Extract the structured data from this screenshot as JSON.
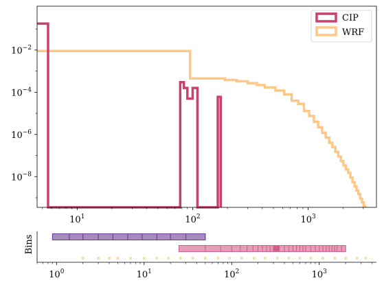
{
  "chart_data": [
    {
      "type": "step",
      "xscale": "log",
      "yscale": "log",
      "xlim": [
        4.5,
        3900
      ],
      "ylim": [
        3.5e-10,
        1.2
      ],
      "grid": false,
      "legend_position": "top-right",
      "x_tick_labels": [
        {
          "value": 10,
          "label": "10",
          "sup": "1"
        },
        {
          "value": 100,
          "label": "10",
          "sup": "2"
        },
        {
          "value": 1000,
          "label": "10",
          "sup": "3"
        }
      ],
      "y_tick_labels": [
        {
          "value": 1e-08,
          "label": "10",
          "sup": "−8"
        },
        {
          "value": 1e-06,
          "label": "10",
          "sup": "−6"
        },
        {
          "value": 0.0001,
          "label": "10",
          "sup": "−4"
        },
        {
          "value": 0.01,
          "label": "10",
          "sup": "−2"
        }
      ],
      "series": [
        {
          "name": "CIP",
          "color": "#c8416f",
          "edges": [
            4.5,
            5.6,
            78,
            84,
            90,
            100,
            110,
            165,
            175
          ],
          "values": [
            0.18,
            0.0,
            0.0003,
            0.00016,
            5e-05,
            0.00016,
            0.0,
            6e-05
          ]
        },
        {
          "name": "WRF",
          "color": "#fdc887",
          "edges": [
            4.5,
            95,
            110,
            140,
            190,
            240,
            300,
            360,
            420,
            520,
            620,
            720,
            820,
            920,
            1020,
            1120,
            1220,
            1320,
            1420,
            1520,
            1620,
            1720,
            1820,
            1920,
            2020,
            2120,
            2220,
            2320,
            2420,
            2520,
            2620,
            2720,
            2820,
            2920,
            3020,
            3120
          ],
          "values": [
            0.009,
            0.00045,
            0.00045,
            0.00045,
            0.00038,
            0.00033,
            0.00027,
            0.00022,
            0.00017,
            0.00012,
            8e-05,
            4e-05,
            2.8e-05,
            1.3e-05,
            7.5e-06,
            4e-06,
            2.2e-06,
            1.2e-06,
            7e-07,
            4e-07,
            2.5e-07,
            1.5e-07,
            9e-08,
            5.5e-08,
            3.4e-08,
            2.2e-08,
            1.5e-08,
            9e-09,
            5.5e-09,
            3.5e-09,
            2.2e-09,
            1.5e-09,
            9e-10,
            6e-10,
            4e-10
          ]
        }
      ]
    },
    {
      "type": "bins",
      "ylabel": "Bins",
      "xscale": "log",
      "xlim": [
        0.6,
        4500
      ],
      "x_tick_labels": [
        {
          "value": 1,
          "label": "10",
          "sup": "0"
        },
        {
          "value": 10,
          "label": "10",
          "sup": "1"
        },
        {
          "value": 100,
          "label": "10",
          "sup": "2"
        },
        {
          "value": 1000,
          "label": "10",
          "sup": "3"
        }
      ],
      "rows": [
        {
          "color": "#6b3d91",
          "edges": [
            0.9,
            1.4,
            2.0,
            3.0,
            4.4,
            6.5,
            9.5,
            14,
            20,
            30,
            50
          ]
        },
        {
          "color": "#d45d8a",
          "edges": [
            25,
            50,
            75,
            100,
            125,
            150,
            175,
            200,
            225,
            250,
            275,
            300,
            350,
            400,
            450,
            500,
            550,
            600,
            650,
            700,
            800,
            900,
            1000,
            1100,
            1200,
            1300,
            1400,
            1500,
            1600,
            1800,
            2000
          ],
          "highlight": [
            300,
            350
          ]
        },
        {
          "color": "#fdc887",
          "points": [
            2,
            3,
            4,
            5,
            7,
            10,
            14,
            19,
            26,
            36,
            50,
            70,
            95,
            130,
            180,
            240,
            330,
            450,
            600,
            800,
            1100,
            1500,
            2000,
            2700,
            3400
          ]
        }
      ]
    }
  ]
}
